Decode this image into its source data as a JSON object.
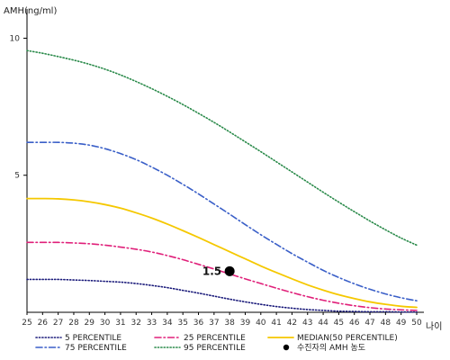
{
  "chart_data": {
    "type": "line",
    "ylabel": "AMH(ng/ml)",
    "xlabel": "나이",
    "xlim": [
      25,
      50
    ],
    "ylim": [
      0,
      11
    ],
    "yticks": [
      5,
      10
    ],
    "grid": false,
    "legend_position": "bottom",
    "x": [
      25,
      26,
      27,
      28,
      29,
      30,
      31,
      32,
      33,
      34,
      35,
      36,
      37,
      38,
      39,
      40,
      41,
      42,
      43,
      44,
      45,
      46,
      47,
      48,
      49,
      50
    ],
    "series": [
      {
        "name": "5 PERCENTILE",
        "color": "#1a1a7a",
        "style": "dotted",
        "values": [
          1.2,
          1.2,
          1.2,
          1.18,
          1.16,
          1.13,
          1.1,
          1.05,
          0.98,
          0.9,
          0.8,
          0.7,
          0.59,
          0.48,
          0.38,
          0.29,
          0.21,
          0.15,
          0.1,
          0.07,
          0.04,
          0.03,
          0.02,
          0.02,
          0.01,
          0.01
        ]
      },
      {
        "name": "25 PERCENTILE",
        "color": "#e0207a",
        "style": "dashdot",
        "values": [
          2.55,
          2.55,
          2.55,
          2.53,
          2.5,
          2.45,
          2.38,
          2.3,
          2.2,
          2.07,
          1.92,
          1.75,
          1.58,
          1.4,
          1.22,
          1.05,
          0.88,
          0.72,
          0.57,
          0.44,
          0.33,
          0.24,
          0.17,
          0.12,
          0.09,
          0.07
        ]
      },
      {
        "name": "MEDIAN(50 PERCENTILE)",
        "color": "#f5c800",
        "style": "solid",
        "values": [
          4.15,
          4.15,
          4.14,
          4.1,
          4.03,
          3.93,
          3.8,
          3.63,
          3.44,
          3.22,
          2.98,
          2.73,
          2.47,
          2.21,
          1.95,
          1.69,
          1.45,
          1.22,
          1.0,
          0.81,
          0.64,
          0.5,
          0.38,
          0.29,
          0.22,
          0.18
        ]
      },
      {
        "name": "75 PERCENTILE",
        "color": "#3a5fc8",
        "style": "dashdot",
        "values": [
          6.2,
          6.2,
          6.2,
          6.17,
          6.1,
          5.97,
          5.79,
          5.57,
          5.3,
          5.0,
          4.67,
          4.32,
          3.95,
          3.58,
          3.2,
          2.83,
          2.48,
          2.14,
          1.83,
          1.53,
          1.27,
          1.04,
          0.84,
          0.67,
          0.53,
          0.42
        ]
      },
      {
        "name": "95 PERCENTILE",
        "color": "#2a8a4a",
        "style": "dotted",
        "values": [
          9.55,
          9.45,
          9.33,
          9.2,
          9.05,
          8.87,
          8.66,
          8.42,
          8.16,
          7.88,
          7.58,
          7.26,
          6.93,
          6.58,
          6.22,
          5.86,
          5.49,
          5.12,
          4.75,
          4.38,
          4.02,
          3.67,
          3.33,
          3.01,
          2.71,
          2.45
        ]
      }
    ],
    "marker": {
      "name": "수진자의 AMH 농도",
      "x": 38,
      "y": 1.5,
      "label": "1.5",
      "color": "#000000"
    }
  }
}
